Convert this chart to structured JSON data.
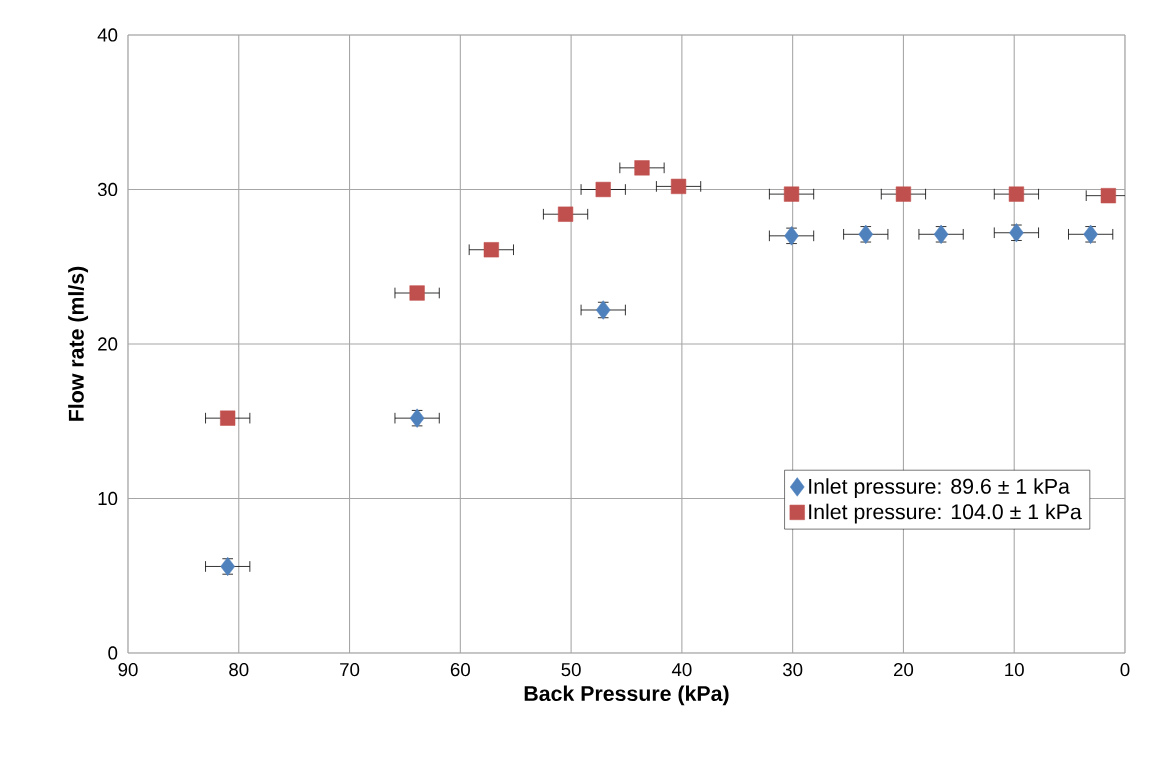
{
  "chart_data": {
    "type": "scatter",
    "xlabel": "Back Pressure (kPa)",
    "ylabel": "Flow rate (ml/s)",
    "xlim": [
      90,
      0
    ],
    "xticks": [
      90,
      80,
      70,
      60,
      50,
      40,
      30,
      20,
      10,
      0
    ],
    "ylim": [
      0,
      40
    ],
    "yticks": [
      0,
      10,
      20,
      30,
      40
    ],
    "grid": true,
    "legend": "bottom right",
    "series": [
      {
        "name": "Inlet pressure: 89.6 ± 1 kPa",
        "color": "#4f81bd",
        "marker": "diamond",
        "x": [
          81.0,
          63.9,
          47.1,
          30.1,
          23.4,
          16.6,
          9.8,
          3.1
        ],
        "values": [
          5.6,
          15.2,
          22.2,
          27.0,
          27.1,
          27.1,
          27.2,
          27.1
        ],
        "xerrors": [
          2,
          2,
          2,
          2,
          2,
          2,
          2,
          2
        ],
        "errors": [
          0.5,
          0.5,
          0.5,
          0.5,
          0.5,
          0.5,
          0.5,
          0.5
        ]
      },
      {
        "name": "Inlet pressure: 104.0 ± 1 kPa",
        "color": "#c0504d",
        "marker": "square",
        "x": [
          81.0,
          63.9,
          57.2,
          50.5,
          47.1,
          43.6,
          40.3,
          30.1,
          20.0,
          9.8,
          1.5
        ],
        "values": [
          15.2,
          23.3,
          26.1,
          28.4,
          30.0,
          31.4,
          30.2,
          29.7,
          29.7,
          29.7,
          29.6
        ],
        "xerrors": [
          2,
          2,
          2,
          2,
          2,
          2,
          2,
          2,
          2,
          2,
          2
        ]
      }
    ]
  }
}
